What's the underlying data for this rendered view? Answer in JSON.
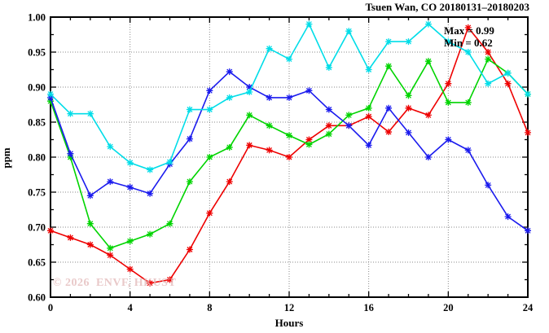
{
  "chart_data": {
    "type": "line",
    "title": "Tsuen Wan, CO 20180131–20180203",
    "xlabel": "Hours",
    "ylabel": "ppm",
    "xlim": [
      0,
      24
    ],
    "ylim": [
      0.6,
      1.0
    ],
    "x_major_ticks": [
      0,
      4,
      8,
      12,
      16,
      20,
      24
    ],
    "x_minor_step": 1,
    "y_major_ticks": [
      0.6,
      0.65,
      0.7,
      0.75,
      0.8,
      0.85,
      0.9,
      0.95,
      1.0
    ],
    "y_minor_step": 0.025,
    "grid": "dotted-at-major-ticks",
    "legend_position": "none",
    "annotations": {
      "max_label": "Max = 0.99",
      "min_label": "Min = 0.62"
    },
    "watermark": "© 2026  ENVF, HKUST",
    "watermark_color": "#e2b8b8",
    "x": [
      0,
      1,
      2,
      3,
      4,
      5,
      6,
      7,
      8,
      9,
      10,
      11,
      12,
      13,
      14,
      15,
      16,
      17,
      18,
      19,
      20,
      21,
      22,
      23,
      24
    ],
    "series": [
      {
        "name": "series-red",
        "color": "#ee0000",
        "values": [
          0.695,
          0.685,
          0.675,
          0.66,
          0.64,
          0.62,
          0.625,
          0.668,
          0.72,
          0.765,
          0.817,
          0.81,
          0.8,
          0.825,
          0.845,
          0.845,
          0.858,
          0.836,
          0.87,
          0.86,
          0.905,
          0.985,
          0.95,
          0.905,
          0.835
        ]
      },
      {
        "name": "series-green",
        "color": "#00d400",
        "values": [
          0.88,
          0.8,
          0.705,
          0.67,
          0.68,
          0.69,
          0.705,
          0.765,
          0.8,
          0.814,
          0.86,
          0.845,
          0.831,
          0.818,
          0.833,
          0.86,
          0.87,
          0.93,
          0.888,
          0.937,
          0.878,
          0.878,
          0.94,
          0.92,
          0.89
        ]
      },
      {
        "name": "series-blue",
        "color": "#1a1aee",
        "values": [
          0.885,
          0.805,
          0.745,
          0.765,
          0.757,
          0.748,
          0.79,
          0.826,
          0.895,
          0.922,
          0.9,
          0.885,
          0.885,
          0.895,
          0.868,
          0.845,
          0.817,
          0.87,
          0.835,
          0.8,
          0.825,
          0.81,
          0.76,
          0.715,
          0.695
        ]
      },
      {
        "name": "series-cyan",
        "color": "#00dde8",
        "values": [
          0.89,
          0.862,
          0.862,
          0.815,
          0.792,
          0.782,
          0.793,
          0.868,
          0.868,
          0.885,
          0.893,
          0.955,
          0.94,
          0.99,
          0.928,
          0.98,
          0.925,
          0.965,
          0.965,
          0.99,
          0.965,
          0.95,
          0.905,
          0.92,
          0.89
        ]
      }
    ]
  }
}
